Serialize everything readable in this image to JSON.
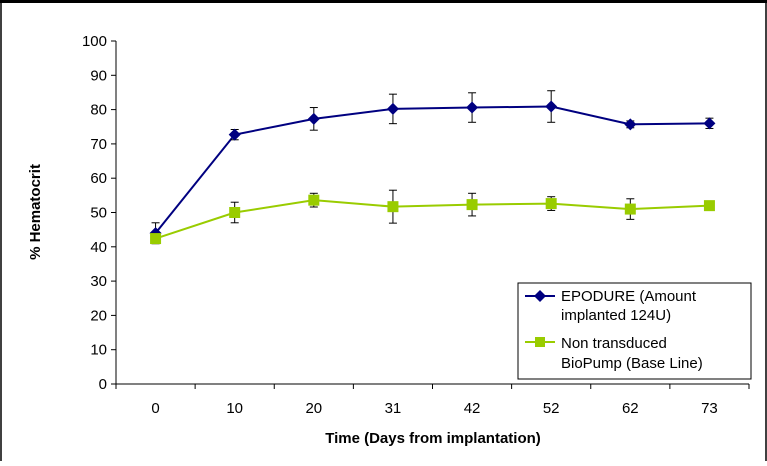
{
  "chart_data": {
    "type": "line",
    "xlabel": "Time (Days from implantation)",
    "ylabel": "% Hematocrit",
    "categories": [
      "0",
      "10",
      "20",
      "31",
      "42",
      "52",
      "62",
      "73"
    ],
    "ylim": [
      0,
      100
    ],
    "yticks": [
      0,
      10,
      20,
      30,
      40,
      50,
      60,
      70,
      80,
      90,
      100
    ],
    "grid": false,
    "legend_position": "bottom-right",
    "series": [
      {
        "name": "EPODURE (Amount implanted 124U)",
        "legend_lines": [
          "EPODURE (Amount",
          "implanted 124U)"
        ],
        "color": "#000080",
        "marker": "diamond",
        "values": [
          44,
          72.7,
          77.3,
          80.2,
          80.6,
          80.9,
          75.7,
          76
        ],
        "errors": [
          3,
          1.5,
          3.3,
          4.3,
          4.3,
          4.6,
          1,
          1.5
        ]
      },
      {
        "name": "Non transduced BioPump (Base Line)",
        "legend_lines": [
          "Non transduced",
          "BioPump (Base Line)"
        ],
        "color": "#99CC00",
        "marker": "square",
        "values": [
          42.4,
          50,
          53.6,
          51.7,
          52.3,
          52.6,
          51,
          52
        ],
        "errors": [
          1.5,
          3,
          2,
          4.8,
          3.3,
          2,
          3,
          0.8
        ]
      }
    ]
  }
}
